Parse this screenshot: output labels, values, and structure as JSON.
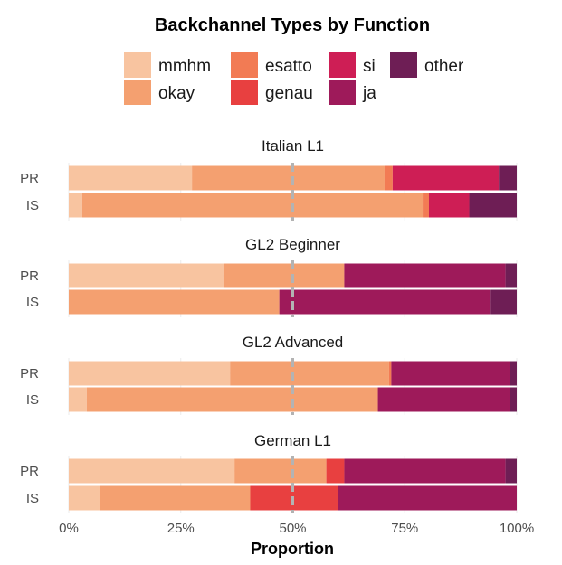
{
  "chart_data": {
    "type": "bar",
    "orientation": "horizontal",
    "stacked": true,
    "title": "Backchannel Types by Function",
    "xlabel": "Proportion",
    "ylabel": "",
    "xlim": [
      0,
      1
    ],
    "x_ticks": [
      "0%",
      "25%",
      "50%",
      "75%",
      "100%"
    ],
    "x_tick_values": [
      0,
      0.25,
      0.5,
      0.75,
      1.0
    ],
    "reference_line": 0.5,
    "grid": true,
    "legend_position": "top",
    "legend": [
      {
        "name": "mmhm",
        "color": "#F8C4A0"
      },
      {
        "name": "okay",
        "color": "#F4A070"
      },
      {
        "name": "esatto",
        "color": "#F27B54"
      },
      {
        "name": "genau",
        "color": "#E84040"
      },
      {
        "name": "si",
        "color": "#CE1E55"
      },
      {
        "name": "ja",
        "color": "#9E1A5A"
      },
      {
        "name": "other",
        "color": "#6E1E55"
      }
    ],
    "panels": [
      {
        "name": "Italian L1",
        "rows": [
          {
            "label": "PR",
            "values": {
              "mmhm": 0.275,
              "okay": 0.43,
              "esatto": 0.018,
              "genau": 0,
              "si": 0.237,
              "ja": 0,
              "other": 0.04
            }
          },
          {
            "label": "IS",
            "values": {
              "mmhm": 0.03,
              "okay": 0.76,
              "esatto": 0.014,
              "genau": 0,
              "si": 0.09,
              "ja": 0,
              "other": 0.106
            }
          }
        ]
      },
      {
        "name": "GL2 Beginner",
        "rows": [
          {
            "label": "PR",
            "values": {
              "mmhm": 0.345,
              "okay": 0.27,
              "esatto": 0,
              "genau": 0,
              "si": 0,
              "ja": 0.36,
              "other": 0.025
            }
          },
          {
            "label": "IS",
            "values": {
              "mmhm": 0,
              "okay": 0.47,
              "esatto": 0,
              "genau": 0,
              "si": 0,
              "ja": 0.47,
              "other": 0.06
            }
          }
        ]
      },
      {
        "name": "GL2 Advanced",
        "rows": [
          {
            "label": "PR",
            "values": {
              "mmhm": 0.36,
              "okay": 0.355,
              "esatto": 0.005,
              "genau": 0,
              "si": 0,
              "ja": 0.265,
              "other": 0.015
            }
          },
          {
            "label": "IS",
            "values": {
              "mmhm": 0.04,
              "okay": 0.65,
              "esatto": 0,
              "genau": 0,
              "si": 0,
              "ja": 0.295,
              "other": 0.015
            }
          }
        ]
      },
      {
        "name": "German L1",
        "rows": [
          {
            "label": "PR",
            "values": {
              "mmhm": 0.37,
              "okay": 0.205,
              "esatto": 0,
              "genau": 0.04,
              "si": 0,
              "ja": 0.36,
              "other": 0.025
            }
          },
          {
            "label": "IS",
            "values": {
              "mmhm": 0.07,
              "okay": 0.335,
              "esatto": 0,
              "genau": 0.195,
              "si": 0,
              "ja": 0.4,
              "other": 0
            }
          }
        ]
      }
    ]
  }
}
